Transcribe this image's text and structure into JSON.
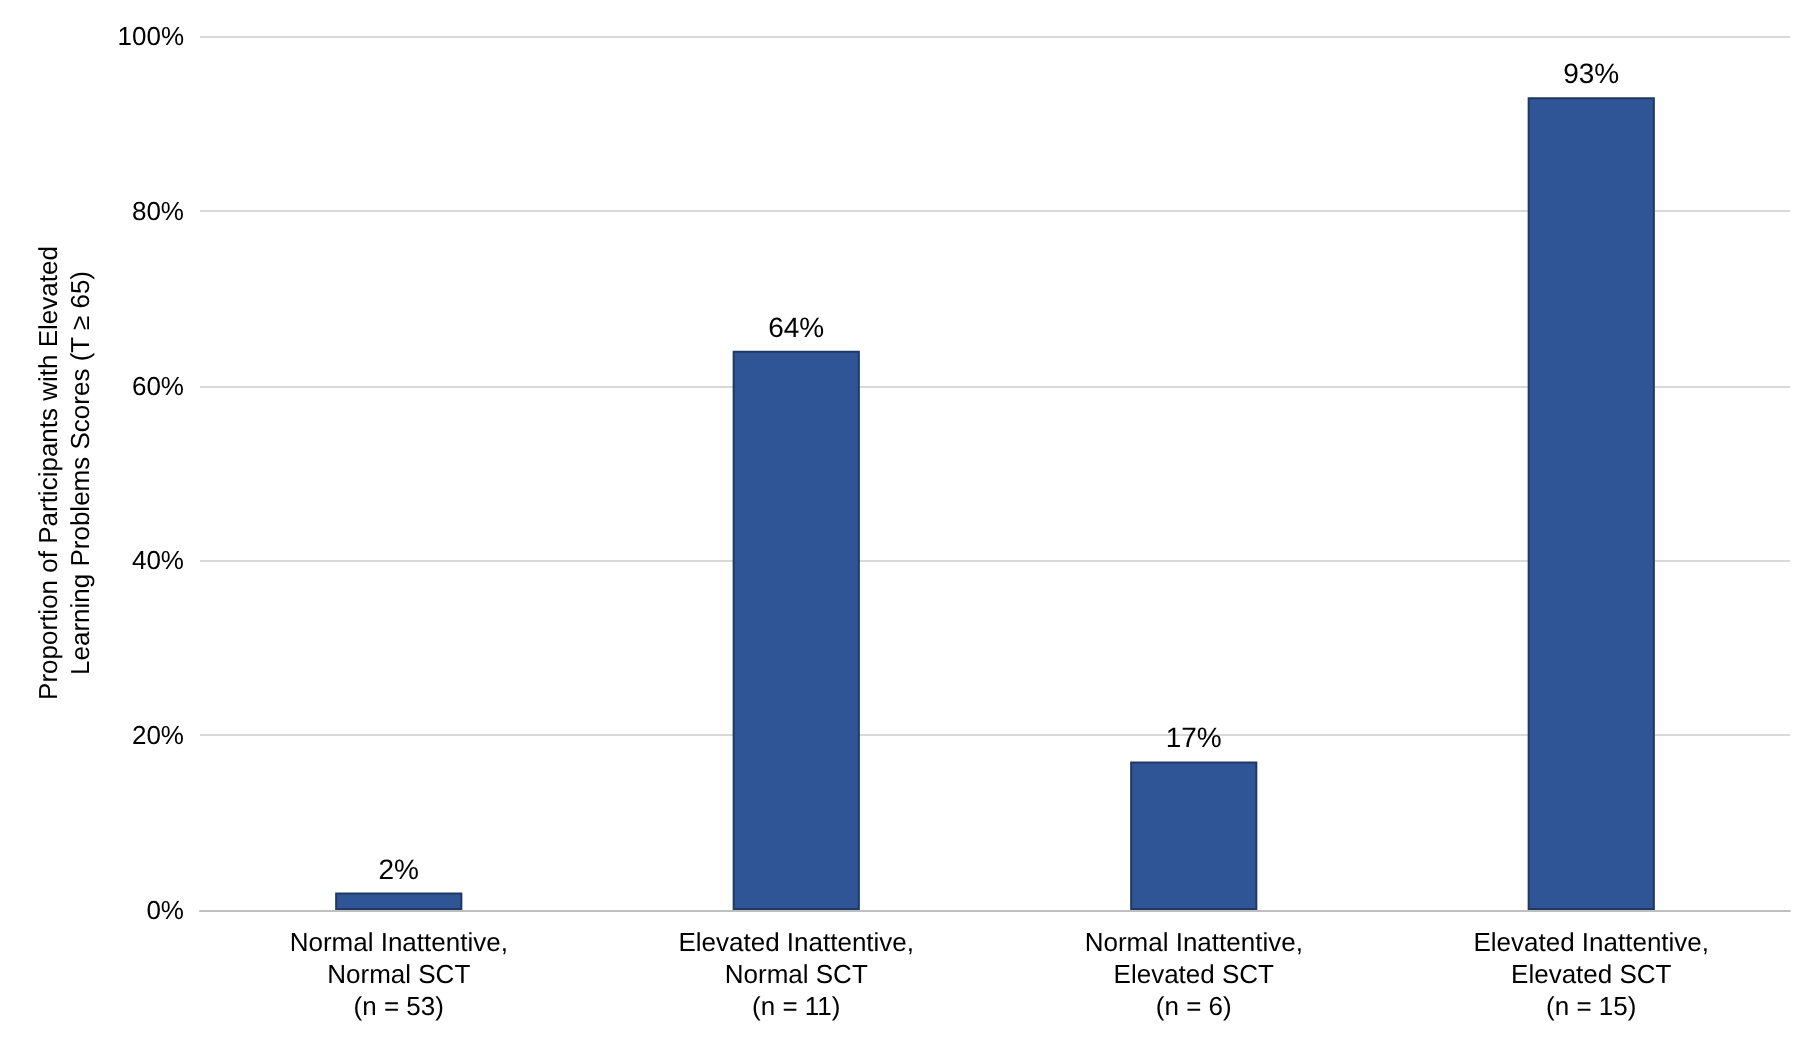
{
  "chart_data": {
    "type": "bar",
    "ylabel": "Proportion of Participants with Elevated\nLearning Problems Scores (T ≥ 65)",
    "categories": [
      "Normal Inattentive,\nNormal SCT\n(n = 53)",
      "Elevated Inattentive,\nNormal SCT\n(n = 11)",
      "Normal Inattentive,\nElevated SCT\n(n = 6)",
      "Elevated Inattentive,\nElevated SCT\n(n = 15)"
    ],
    "values": [
      2,
      64,
      17,
      93
    ],
    "value_labels": [
      "2%",
      "64%",
      "17%",
      "93%"
    ],
    "color": "#2f5597",
    "ylim": [
      0,
      100
    ],
    "yticks": [
      {
        "value": 0,
        "label": "0%"
      },
      {
        "value": 20,
        "label": "20%"
      },
      {
        "value": 40,
        "label": "40%"
      },
      {
        "value": 60,
        "label": "60%"
      },
      {
        "value": 80,
        "label": "80%"
      },
      {
        "value": 100,
        "label": "100%"
      }
    ],
    "grid": true
  }
}
